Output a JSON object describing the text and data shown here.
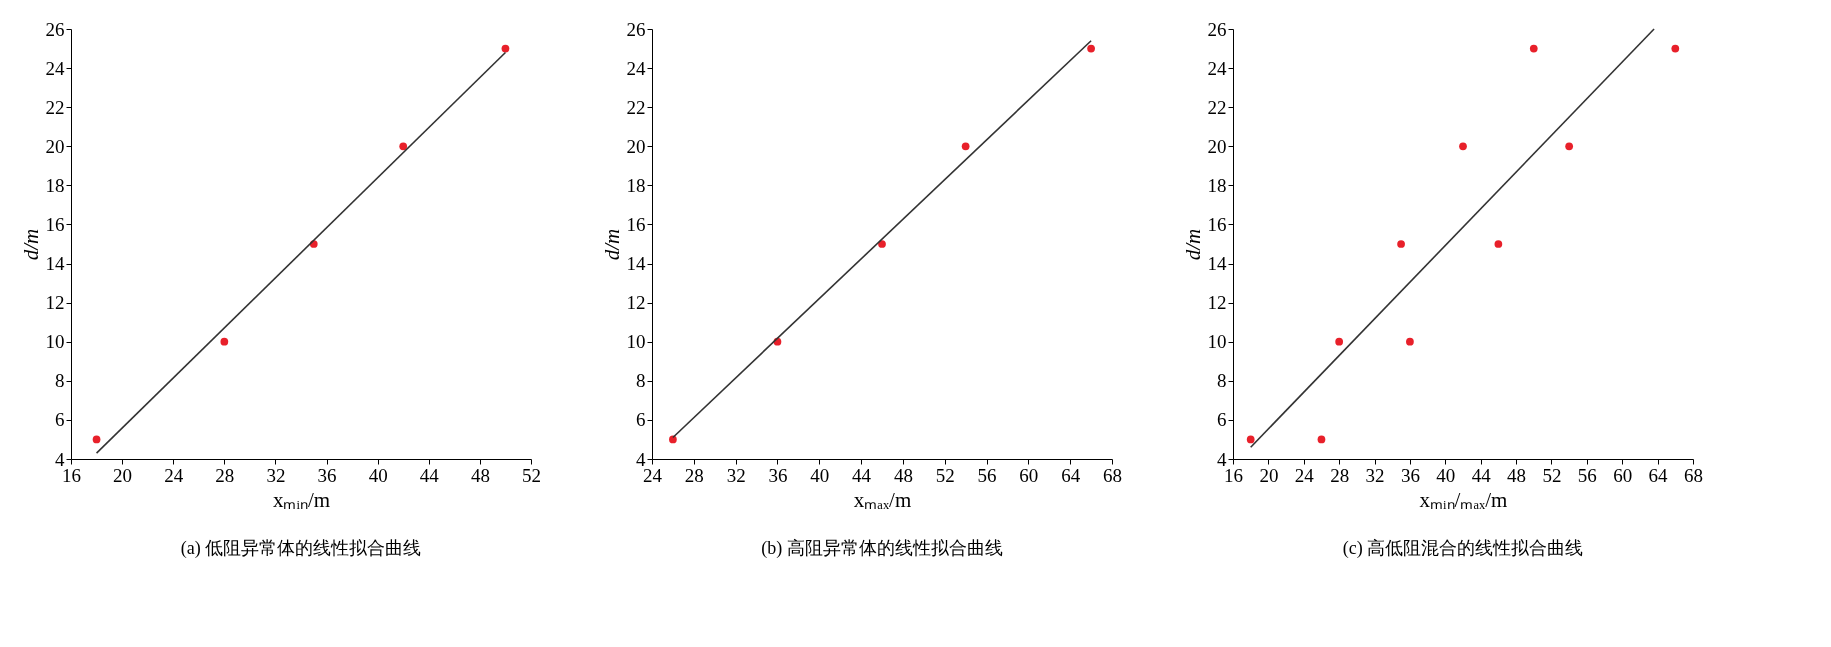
{
  "chart_data": [
    {
      "type": "scatter",
      "title": "(a) 低阻异常体的线性拟合曲线",
      "xlabel": "xₘᵢₙ/m",
      "ylabel": "d/m",
      "xlim": [
        16,
        52
      ],
      "xticks": [
        16,
        20,
        24,
        28,
        32,
        36,
        40,
        44,
        48,
        52
      ],
      "ylim": [
        4,
        26
      ],
      "yticks": [
        4,
        6,
        8,
        10,
        12,
        14,
        16,
        18,
        20,
        22,
        24,
        26
      ],
      "grid": false,
      "series": [
        {
          "marker": "circle",
          "color": "#e8202a",
          "x": [
            18,
            28,
            35,
            42,
            50
          ],
          "values": [
            5,
            10,
            15,
            20,
            25
          ]
        },
        {
          "type": "line",
          "color": "#333333",
          "line_style": "solid",
          "x": [
            18,
            50
          ],
          "values": [
            4.3,
            24.8
          ]
        }
      ]
    },
    {
      "type": "scatter",
      "title": "(b) 高阻异常体的线性拟合曲线",
      "xlabel": "xₘₐₓ/m",
      "ylabel": "d/m",
      "xlim": [
        24,
        68
      ],
      "xticks": [
        24,
        28,
        32,
        36,
        40,
        44,
        48,
        52,
        56,
        60,
        64,
        68
      ],
      "ylim": [
        4,
        26
      ],
      "yticks": [
        4,
        6,
        8,
        10,
        12,
        14,
        16,
        18,
        20,
        22,
        24,
        26
      ],
      "grid": false,
      "series": [
        {
          "marker": "circle",
          "color": "#e8202a",
          "x": [
            26,
            36,
            46,
            54,
            66
          ],
          "values": [
            5,
            10,
            15,
            20,
            25
          ]
        },
        {
          "type": "line",
          "color": "#333333",
          "line_style": "solid",
          "x": [
            26,
            66
          ],
          "values": [
            5.1,
            25.4
          ]
        }
      ]
    },
    {
      "type": "scatter",
      "title": "(c) 高低阻混合的线性拟合曲线",
      "xlabel": "xₘᵢₙ/ₘₐₓ/m",
      "ylabel": "d/m",
      "xlim": [
        16,
        68
      ],
      "xticks": [
        16,
        20,
        24,
        28,
        32,
        36,
        40,
        44,
        48,
        52,
        56,
        60,
        64,
        68
      ],
      "ylim": [
        4,
        26
      ],
      "yticks": [
        4,
        6,
        8,
        10,
        12,
        14,
        16,
        18,
        20,
        22,
        24,
        26
      ],
      "grid": false,
      "series": [
        {
          "marker": "circle",
          "color": "#e8202a",
          "x": [
            18,
            26,
            28,
            36,
            35,
            46,
            42,
            54,
            50,
            66
          ],
          "values": [
            5,
            5,
            10,
            10,
            15,
            15,
            20,
            20,
            25,
            25
          ]
        },
        {
          "type": "line",
          "color": "#333333",
          "line_style": "solid",
          "x": [
            18,
            63.6
          ],
          "values": [
            4.6,
            26
          ]
        }
      ]
    }
  ]
}
